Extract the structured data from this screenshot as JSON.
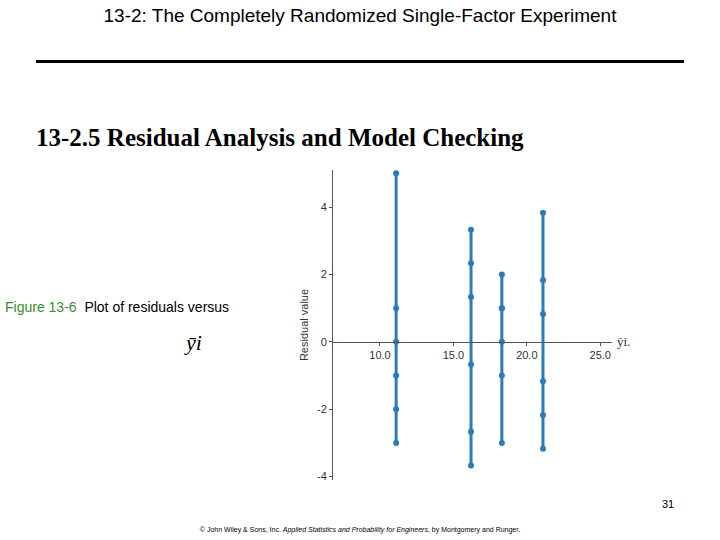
{
  "slide": {
    "title": "13-2: The Completely Randomized Single-Factor Experiment",
    "heading": "13-2.5 Residual Analysis and Model Checking",
    "caption_label": "Figure 13-6",
    "caption": "Plot of residuals versus",
    "caption_symbol": "ȳi",
    "page": 31,
    "footer": [
      "© John Wiley & Sons, Inc.  ",
      "Applied Statistics and Probability for Engineers",
      ", by Montgomery and Runger."
    ]
  },
  "chart_data": {
    "type": "scatter",
    "x_label": "ȳi.",
    "y_label": "Residual value",
    "color": "#2b7bb9",
    "marker": "circle",
    "line_style": "solid",
    "grid": false,
    "xlim": [
      6.8,
      25.8
    ],
    "xticks": [
      {
        "value": 10,
        "label": "10.0"
      },
      {
        "value": 15,
        "label": "15.0"
      },
      {
        "value": 20,
        "label": "20.0"
      },
      {
        "value": 25,
        "label": "25.0"
      }
    ],
    "ylim": [
      -4.1,
      5.1
    ],
    "yticks": [
      -4,
      -2,
      0,
      2,
      4
    ],
    "series": [
      {
        "x": [
          11.1,
          11.1,
          11.1,
          11.1,
          11.1,
          11.1
        ],
        "values": [
          -3,
          -2,
          5,
          1,
          -1,
          0
        ]
      },
      {
        "x": [
          16.2,
          16.2,
          16.2,
          16.2,
          16.2,
          16.2
        ],
        "values": [
          -3.67,
          1.33,
          -2.67,
          2.33,
          3.33,
          -0.67
        ]
      },
      {
        "x": [
          18.3,
          18.3,
          18.3,
          18.3,
          18.3,
          18.3
        ],
        "values": [
          -3,
          1,
          2,
          0,
          -1,
          1
        ]
      },
      {
        "x": [
          21.1,
          21.1,
          21.1,
          21.1,
          21.1,
          21.1
        ],
        "values": [
          -2.17,
          3.83,
          0.83,
          1.83,
          -3.17,
          -1.17
        ]
      }
    ]
  }
}
